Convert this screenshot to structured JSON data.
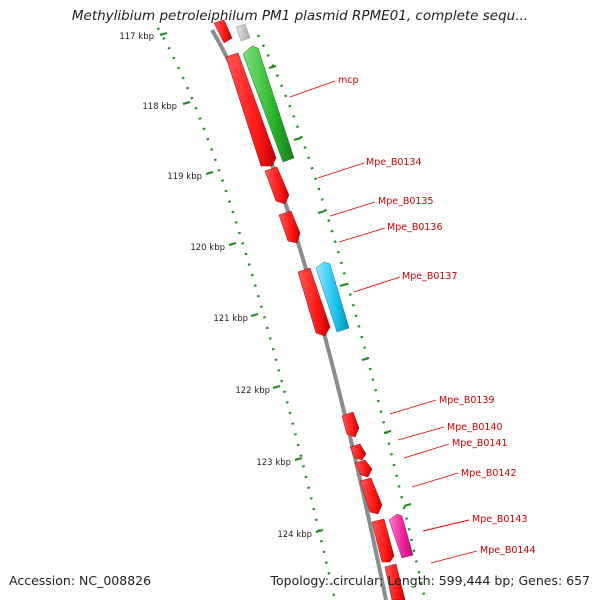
{
  "title": "Methylibium petroleiphilum PM1 plasmid RPME01, complete sequ...",
  "accession": "Accession: NC_008826",
  "stats": "Topology: circular; Length: 599,444 bp; Genes: 657",
  "colors": {
    "backbone": "#8c8c8c",
    "forward_gene": "#ff1a1a",
    "reverse_gene_green": "#2bb52b",
    "reverse_gene_cyan": "#19c3f0",
    "reverse_gene_magenta": "#ee1f9a",
    "other_gene": "#c8c8c8",
    "tick": "#1a8c1a",
    "label_line": "#ee0000",
    "label_text": "#cc0000"
  },
  "kbp_ticks": [
    "117 kbp",
    "118 kbp",
    "119 kbp",
    "120 kbp",
    "121 kbp",
    "122 kbp",
    "123 kbp",
    "124 kbp"
  ],
  "gene_labels": [
    "mcp",
    "Mpe_B0134",
    "Mpe_B0135",
    "Mpe_B0136",
    "Mpe_B0137",
    "Mpe_B0139",
    "Mpe_B0140",
    "Mpe_B0141",
    "Mpe_B0142",
    "Mpe_B0143",
    "Mpe_B0144"
  ]
}
